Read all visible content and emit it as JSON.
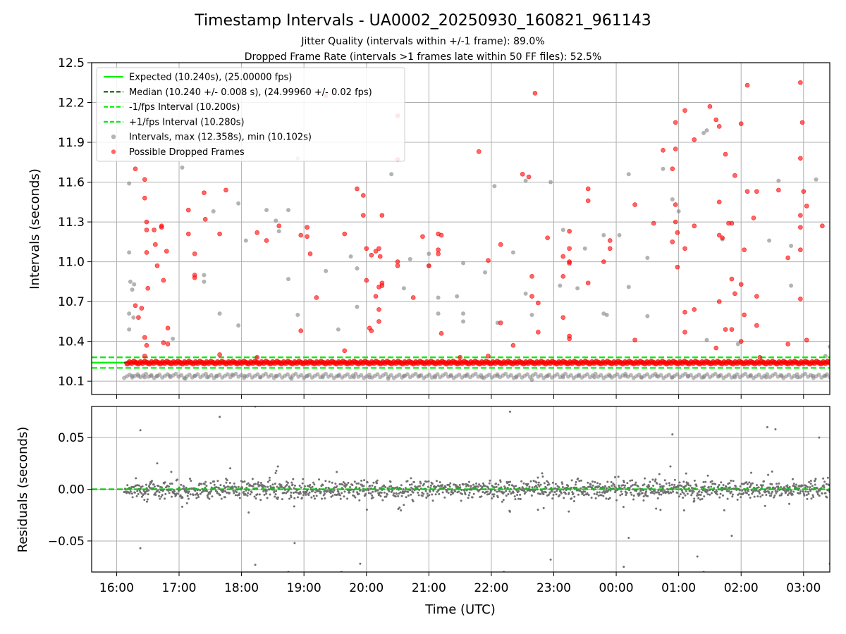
{
  "chart_data": {
    "type": "scatter",
    "title": "Timestamp Intervals - UA0002_20250930_160821_961143",
    "subtitles": [
      "Jitter Quality (intervals within +/-1 frame): 89.0%",
      "Dropped Frame Rate (intervals >1 frames late within 50 FF files): 52.5%"
    ],
    "xlabel": "Time (UTC)",
    "x_tick_labels": [
      "16:00",
      "17:00",
      "18:00",
      "19:00",
      "20:00",
      "21:00",
      "22:00",
      "23:00",
      "00:00",
      "01:00",
      "02:00",
      "03:00"
    ],
    "x_range_hours": [
      15.6,
      27.42
    ],
    "grid": true,
    "colors": {
      "expected": "#00ee00",
      "median": "#006400",
      "interval_bounds": "#00ee00",
      "intervals": "#808080",
      "dropped": "#ff0000",
      "residuals": "#707070",
      "residual_zero": "#00cc00"
    },
    "top_panel": {
      "ylabel": "Intervals (seconds)",
      "ylim": [
        10.0,
        12.5
      ],
      "y_ticks": [
        "10.1",
        "10.4",
        "10.7",
        "11.0",
        "11.3",
        "11.6",
        "11.9",
        "12.2",
        "12.5"
      ],
      "expected": 10.24,
      "median": 10.24,
      "lower_interval": 10.2,
      "upper_interval": 10.28,
      "legend_position": "upper-left",
      "legend": [
        "Expected (10.240s), (25.00000 fps)",
        "Median (10.240 +/- 0.008 s), (24.99960 +/- 0.02 fps)",
        "-1/fps Interval (10.200s)",
        "+1/fps Interval (10.280s)",
        "Intervals, max (12.358s), min (10.102s)",
        "Possible Dropped Frames"
      ],
      "x_extent_hours": [
        16.12,
        27.42
      ],
      "gray_points": [
        [
          16.2,
          11.59
        ],
        [
          16.2,
          11.07
        ],
        [
          16.22,
          10.85
        ],
        [
          16.25,
          10.79
        ],
        [
          16.2,
          10.61
        ],
        [
          16.2,
          10.49
        ],
        [
          16.27,
          10.58
        ],
        [
          16.28,
          10.83
        ],
        [
          16.9,
          10.42
        ],
        [
          17.05,
          11.71
        ],
        [
          17.4,
          10.9
        ],
        [
          17.4,
          10.85
        ],
        [
          17.55,
          11.38
        ],
        [
          17.65,
          10.61
        ],
        [
          17.95,
          11.44
        ],
        [
          17.95,
          10.52
        ],
        [
          18.07,
          11.16
        ],
        [
          18.4,
          11.39
        ],
        [
          18.55,
          11.31
        ],
        [
          18.6,
          11.23
        ],
        [
          18.75,
          11.39
        ],
        [
          18.75,
          10.87
        ],
        [
          18.9,
          11.78
        ],
        [
          18.9,
          10.6
        ],
        [
          19.35,
          10.93
        ],
        [
          19.55,
          10.49
        ],
        [
          19.75,
          11.04
        ],
        [
          19.85,
          10.95
        ],
        [
          19.85,
          10.66
        ],
        [
          20.4,
          11.66
        ],
        [
          20.6,
          10.8
        ],
        [
          20.7,
          11.02
        ],
        [
          21.0,
          11.06
        ],
        [
          21.0,
          10.97
        ],
        [
          21.15,
          10.73
        ],
        [
          21.15,
          10.61
        ],
        [
          21.45,
          10.74
        ],
        [
          21.55,
          10.99
        ],
        [
          21.55,
          10.61
        ],
        [
          21.55,
          10.55
        ],
        [
          21.9,
          10.92
        ],
        [
          22.05,
          11.57
        ],
        [
          22.1,
          10.54
        ],
        [
          22.35,
          11.07
        ],
        [
          22.55,
          10.76
        ],
        [
          22.55,
          11.61
        ],
        [
          22.65,
          10.6
        ],
        [
          22.95,
          11.6
        ],
        [
          23.1,
          10.82
        ],
        [
          23.15,
          11.24
        ],
        [
          23.38,
          10.8
        ],
        [
          23.5,
          11.1
        ],
        [
          23.8,
          11.2
        ],
        [
          23.8,
          10.61
        ],
        [
          23.85,
          10.6
        ],
        [
          24.05,
          11.2
        ],
        [
          24.2,
          11.66
        ],
        [
          24.2,
          10.81
        ],
        [
          24.5,
          11.03
        ],
        [
          24.5,
          10.59
        ],
        [
          24.75,
          11.7
        ],
        [
          24.9,
          11.47
        ],
        [
          25.0,
          11.38
        ],
        [
          25.4,
          11.97
        ],
        [
          25.45,
          11.99
        ],
        [
          25.45,
          10.41
        ],
        [
          25.7,
          11.17
        ],
        [
          25.95,
          10.38
        ],
        [
          26.45,
          11.16
        ],
        [
          26.6,
          11.61
        ],
        [
          26.8,
          11.12
        ],
        [
          26.8,
          10.82
        ],
        [
          27.2,
          11.62
        ],
        [
          27.35,
          10.29
        ],
        [
          27.42,
          10.36
        ]
      ],
      "red_points": [
        [
          16.3,
          11.7
        ],
        [
          16.3,
          10.67
        ],
        [
          16.35,
          10.58
        ],
        [
          16.4,
          10.65
        ],
        [
          16.45,
          11.62
        ],
        [
          16.45,
          11.48
        ],
        [
          16.48,
          11.3
        ],
        [
          16.48,
          11.24
        ],
        [
          16.48,
          11.07
        ],
        [
          16.5,
          10.8
        ],
        [
          16.45,
          10.43
        ],
        [
          16.48,
          10.37
        ],
        [
          16.45,
          10.29
        ],
        [
          16.6,
          11.24
        ],
        [
          16.62,
          11.13
        ],
        [
          16.65,
          10.97
        ],
        [
          16.72,
          11.27
        ],
        [
          16.72,
          11.26
        ],
        [
          16.75,
          10.86
        ],
        [
          16.75,
          10.39
        ],
        [
          16.8,
          11.08
        ],
        [
          16.82,
          10.5
        ],
        [
          16.82,
          10.38
        ],
        [
          17.15,
          11.39
        ],
        [
          17.15,
          11.21
        ],
        [
          17.25,
          11.06
        ],
        [
          17.25,
          10.9
        ],
        [
          17.25,
          10.88
        ],
        [
          17.4,
          11.52
        ],
        [
          17.42,
          11.32
        ],
        [
          17.65,
          11.21
        ],
        [
          17.65,
          10.3
        ],
        [
          17.75,
          11.54
        ],
        [
          18.25,
          11.22
        ],
        [
          18.25,
          10.28
        ],
        [
          18.4,
          11.16
        ],
        [
          18.6,
          11.27
        ],
        [
          18.95,
          11.2
        ],
        [
          18.95,
          10.48
        ],
        [
          19.05,
          11.26
        ],
        [
          19.05,
          11.19
        ],
        [
          19.1,
          11.06
        ],
        [
          19.2,
          10.73
        ],
        [
          19.35,
          12.25
        ],
        [
          19.65,
          11.21
        ],
        [
          19.65,
          10.33
        ],
        [
          19.85,
          11.55
        ],
        [
          19.95,
          11.5
        ],
        [
          19.95,
          11.35
        ],
        [
          20.0,
          11.1
        ],
        [
          20.0,
          10.86
        ],
        [
          20.05,
          10.5
        ],
        [
          20.08,
          11.05
        ],
        [
          20.08,
          10.48
        ],
        [
          20.15,
          11.08
        ],
        [
          20.15,
          10.74
        ],
        [
          20.2,
          10.64
        ],
        [
          20.2,
          11.1
        ],
        [
          20.2,
          10.81
        ],
        [
          20.2,
          10.55
        ],
        [
          20.22,
          11.04
        ],
        [
          20.25,
          11.35
        ],
        [
          20.25,
          10.84
        ],
        [
          20.25,
          10.82
        ],
        [
          20.5,
          11.77
        ],
        [
          20.5,
          12.1
        ],
        [
          20.5,
          10.97
        ],
        [
          20.5,
          11.0
        ],
        [
          20.75,
          10.73
        ],
        [
          20.9,
          11.19
        ],
        [
          21.0,
          10.97
        ],
        [
          21.15,
          11.21
        ],
        [
          21.15,
          11.09
        ],
        [
          21.15,
          11.06
        ],
        [
          21.2,
          11.2
        ],
        [
          21.2,
          10.46
        ],
        [
          21.5,
          10.28
        ],
        [
          21.8,
          11.83
        ],
        [
          21.95,
          11.01
        ],
        [
          21.95,
          10.29
        ],
        [
          22.15,
          11.13
        ],
        [
          22.15,
          10.54
        ],
        [
          22.35,
          10.37
        ],
        [
          22.5,
          11.66
        ],
        [
          22.6,
          11.64
        ],
        [
          22.65,
          10.89
        ],
        [
          22.65,
          10.74
        ],
        [
          22.7,
          12.27
        ],
        [
          22.75,
          10.69
        ],
        [
          22.75,
          10.47
        ],
        [
          22.9,
          11.18
        ],
        [
          23.15,
          10.58
        ],
        [
          23.15,
          11.04
        ],
        [
          23.15,
          10.89
        ],
        [
          23.25,
          11.23
        ],
        [
          23.25,
          11.1
        ],
        [
          23.25,
          11.0
        ],
        [
          23.25,
          10.99
        ],
        [
          23.25,
          10.44
        ],
        [
          23.25,
          10.42
        ],
        [
          23.55,
          11.55
        ],
        [
          23.55,
          11.46
        ],
        [
          23.55,
          10.84
        ],
        [
          23.8,
          11.0
        ],
        [
          23.9,
          11.16
        ],
        [
          23.9,
          11.1
        ],
        [
          24.3,
          11.43
        ],
        [
          24.3,
          10.41
        ],
        [
          24.6,
          11.29
        ],
        [
          24.75,
          11.84
        ],
        [
          24.9,
          11.7
        ],
        [
          24.9,
          11.15
        ],
        [
          24.95,
          12.05
        ],
        [
          24.95,
          11.85
        ],
        [
          24.95,
          11.43
        ],
        [
          24.95,
          11.3
        ],
        [
          24.98,
          11.22
        ],
        [
          24.98,
          10.96
        ],
        [
          25.1,
          12.14
        ],
        [
          25.1,
          11.1
        ],
        [
          25.1,
          10.62
        ],
        [
          25.1,
          10.47
        ],
        [
          25.25,
          11.92
        ],
        [
          25.25,
          11.27
        ],
        [
          25.25,
          10.64
        ],
        [
          25.5,
          12.17
        ],
        [
          25.6,
          12.07
        ],
        [
          25.6,
          10.35
        ],
        [
          25.65,
          12.02
        ],
        [
          25.65,
          11.45
        ],
        [
          25.65,
          11.2
        ],
        [
          25.65,
          10.7
        ],
        [
          25.7,
          11.18
        ],
        [
          25.75,
          11.81
        ],
        [
          25.75,
          10.49
        ],
        [
          25.8,
          11.29
        ],
        [
          25.85,
          11.29
        ],
        [
          25.85,
          10.87
        ],
        [
          25.85,
          10.49
        ],
        [
          25.9,
          11.65
        ],
        [
          25.9,
          10.76
        ],
        [
          26.0,
          12.04
        ],
        [
          26.0,
          10.83
        ],
        [
          26.0,
          10.4
        ],
        [
          26.05,
          11.09
        ],
        [
          26.05,
          10.6
        ],
        [
          26.1,
          12.33
        ],
        [
          26.1,
          11.53
        ],
        [
          26.2,
          11.33
        ],
        [
          26.25,
          11.53
        ],
        [
          26.25,
          10.74
        ],
        [
          26.25,
          10.52
        ],
        [
          26.3,
          10.28
        ],
        [
          26.6,
          11.54
        ],
        [
          26.75,
          11.03
        ],
        [
          26.75,
          10.38
        ],
        [
          26.95,
          12.35
        ],
        [
          26.95,
          11.78
        ],
        [
          26.95,
          11.35
        ],
        [
          26.95,
          11.26
        ],
        [
          26.95,
          11.09
        ],
        [
          26.95,
          10.72
        ],
        [
          26.98,
          12.05
        ],
        [
          27.0,
          11.53
        ],
        [
          27.05,
          11.42
        ],
        [
          27.05,
          10.41
        ],
        [
          27.3,
          11.27
        ]
      ],
      "bottom_gray_points": [
        [
          16.25,
          10.14
        ],
        [
          16.35,
          10.14
        ],
        [
          16.45,
          10.13
        ],
        [
          16.55,
          10.14
        ],
        [
          16.65,
          10.14
        ],
        [
          16.85,
          10.14
        ],
        [
          17.1,
          10.12
        ],
        [
          17.25,
          10.14
        ],
        [
          17.45,
          10.13
        ],
        [
          17.6,
          10.14
        ],
        [
          17.85,
          10.15
        ],
        [
          18.05,
          10.14
        ],
        [
          18.3,
          10.13
        ],
        [
          18.55,
          10.14
        ],
        [
          18.8,
          10.12
        ],
        [
          19.05,
          10.14
        ],
        [
          19.3,
          10.13
        ],
        [
          19.55,
          10.14
        ],
        [
          19.8,
          10.13
        ],
        [
          20.05,
          10.13
        ],
        [
          20.35,
          10.12
        ],
        [
          20.6,
          10.14
        ],
        [
          20.85,
          10.14
        ],
        [
          21.1,
          10.13
        ],
        [
          21.35,
          10.14
        ],
        [
          21.6,
          10.14
        ],
        [
          21.85,
          10.13
        ],
        [
          22.1,
          10.14
        ],
        [
          22.4,
          10.13
        ],
        [
          22.65,
          10.11
        ],
        [
          22.9,
          10.14
        ],
        [
          23.15,
          10.13
        ],
        [
          23.4,
          10.14
        ],
        [
          23.65,
          10.13
        ],
        [
          23.9,
          10.14
        ],
        [
          24.15,
          10.14
        ],
        [
          24.4,
          10.13
        ],
        [
          24.65,
          10.14
        ],
        [
          24.9,
          10.13
        ],
        [
          25.15,
          10.14
        ],
        [
          25.4,
          10.13
        ],
        [
          25.65,
          10.14
        ],
        [
          25.9,
          10.13
        ],
        [
          26.15,
          10.14
        ],
        [
          26.4,
          10.13
        ],
        [
          26.65,
          10.14
        ],
        [
          26.9,
          10.13
        ],
        [
          27.15,
          10.14
        ],
        [
          27.35,
          10.14
        ]
      ]
    },
    "bottom_panel": {
      "ylabel": "Residuals (seconds)",
      "ylim": [
        -0.08,
        0.08
      ],
      "y_ticks": [
        "−0.05",
        "0.00",
        "0.05"
      ],
      "y_tick_values": [
        -0.05,
        0.0,
        0.05
      ],
      "zero_line": 0.0,
      "x_extent_hours": [
        16.12,
        27.42
      ],
      "outliers": [
        [
          16.38,
          0.057
        ],
        [
          16.38,
          -0.057
        ],
        [
          16.65,
          0.025
        ],
        [
          17.65,
          0.07
        ],
        [
          18.22,
          0.08
        ],
        [
          18.22,
          -0.073
        ],
        [
          18.85,
          -0.052
        ],
        [
          18.75,
          -0.08
        ],
        [
          19.6,
          -0.08
        ],
        [
          19.9,
          -0.072
        ],
        [
          22.3,
          0.075
        ],
        [
          22.2,
          -0.08
        ],
        [
          22.95,
          -0.068
        ],
        [
          24.2,
          -0.047
        ],
        [
          24.12,
          -0.075
        ],
        [
          24.9,
          0.053
        ],
        [
          25.3,
          -0.065
        ],
        [
          25.4,
          -0.08
        ],
        [
          25.85,
          -0.045
        ],
        [
          26.42,
          0.06
        ],
        [
          26.55,
          0.058
        ],
        [
          27.25,
          0.05
        ],
        [
          27.42,
          -0.072
        ]
      ]
    }
  }
}
